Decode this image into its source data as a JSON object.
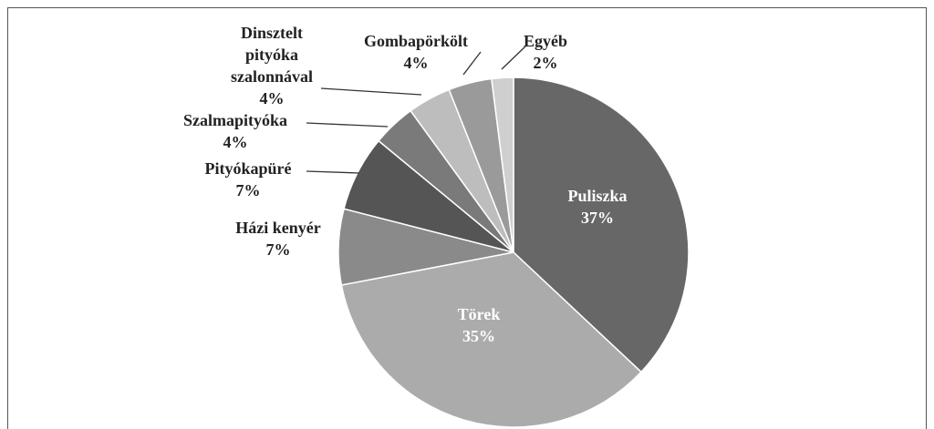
{
  "chart_data": {
    "type": "pie",
    "categories": [
      "Puliszka",
      "Törek",
      "Házi kenyér",
      "Pityókapüré",
      "Szalmapityóka",
      "Dinsztelt pityóka szalonnával",
      "Gombapörkölt",
      "Egyéb"
    ],
    "values": [
      37,
      35,
      7,
      7,
      4,
      4,
      4,
      2
    ],
    "value_labels": [
      "37%",
      "35%",
      "7%",
      "7%",
      "4%",
      "4%",
      "4%",
      "2%"
    ],
    "colors": [
      "#676767",
      "#ababab",
      "#8a8a8a",
      "#555555",
      "#7a7a7a",
      "#bdbdbd",
      "#9a9a9a",
      "#cfcfcf"
    ]
  }
}
